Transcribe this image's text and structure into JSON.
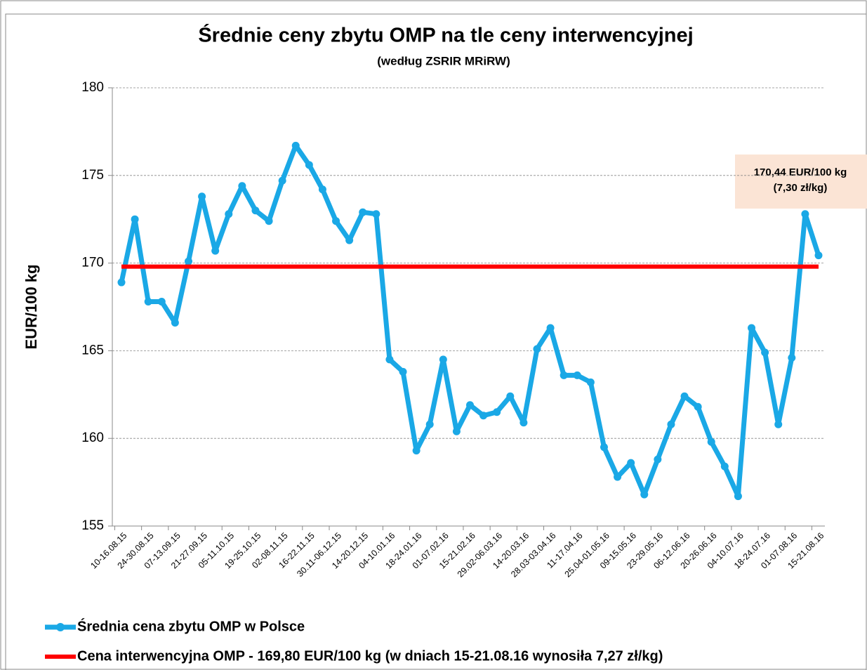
{
  "chart_data": {
    "type": "line",
    "title": "Średnie ceny zbytu OMP na tle ceny interwencyjnej",
    "subtitle": "(według ZSRIR MRiRW)",
    "y_label": "EUR/100 kg",
    "annotation": [
      "170,44 EUR/100 kg",
      "(7,30 zł/kg)"
    ],
    "categories": [
      "10-16.08.15",
      null,
      "24-30.08.15",
      null,
      "07-13.09.15",
      null,
      "21-27.09.15",
      null,
      "05-11.10.15",
      null,
      "19-25.10.15",
      null,
      "02-08.11.15",
      null,
      "16-22.11.15",
      null,
      "30.11-06.12.15",
      null,
      "14-20.12.15",
      null,
      "04-10.01.16",
      null,
      "18-24.01.16",
      null,
      "01-07.02.16",
      null,
      "15-21.02.16",
      null,
      "29.02-06.03.16",
      null,
      "14-20.03.16",
      null,
      "28.03-03.04.16",
      null,
      "11-17.04.16",
      null,
      "25.04-01.05.16",
      null,
      "09-15.05.16",
      null,
      "23-29.05.16",
      null,
      "06-12.06.16",
      null,
      "20-26.06.16",
      null,
      "04-10.07.16",
      null,
      "18-24.07.16",
      null,
      "01-07.08.16",
      null,
      "15-21.08.16"
    ],
    "series": [
      {
        "name": "Średnia cena zbytu OMP w Polsce",
        "color": "#1aa8e6",
        "values": [
          168.9,
          172.5,
          167.8,
          167.8,
          166.6,
          170.1,
          173.8,
          170.7,
          172.8,
          174.4,
          173.0,
          172.4,
          174.7,
          176.7,
          175.6,
          174.2,
          172.4,
          171.3,
          172.9,
          172.8,
          164.5,
          163.8,
          159.3,
          160.8,
          164.5,
          160.4,
          161.9,
          161.3,
          161.5,
          162.4,
          160.9,
          165.1,
          166.3,
          163.6,
          163.6,
          163.2,
          159.5,
          157.8,
          158.6,
          156.8,
          158.8,
          160.8,
          162.4,
          161.8,
          159.8,
          158.4,
          156.7,
          166.3,
          164.9,
          160.8,
          164.6,
          172.8,
          170.44
        ]
      },
      {
        "name": "Cena interwencyjna OMP - 169,80 EUR/100 kg  (w dniach  15-21.08.16  wynosiła 7,27 zł/kg)",
        "color": "#ff0000",
        "values": [
          169.8,
          169.8,
          169.8,
          169.8,
          169.8,
          169.8,
          169.8,
          169.8,
          169.8,
          169.8,
          169.8,
          169.8,
          169.8,
          169.8,
          169.8,
          169.8,
          169.8,
          169.8,
          169.8,
          169.8,
          169.8,
          169.8,
          169.8,
          169.8,
          169.8,
          169.8,
          169.8,
          169.8,
          169.8,
          169.8,
          169.8,
          169.8,
          169.8,
          169.8,
          169.8,
          169.8,
          169.8,
          169.8,
          169.8,
          169.8,
          169.8,
          169.8,
          169.8,
          169.8,
          169.8,
          169.8,
          169.8,
          169.8,
          169.8,
          169.8,
          169.8,
          169.8,
          169.8
        ]
      }
    ],
    "ylim": [
      155,
      180
    ],
    "yticks": [
      155,
      160,
      165,
      170,
      175,
      180
    ],
    "grid": true
  }
}
